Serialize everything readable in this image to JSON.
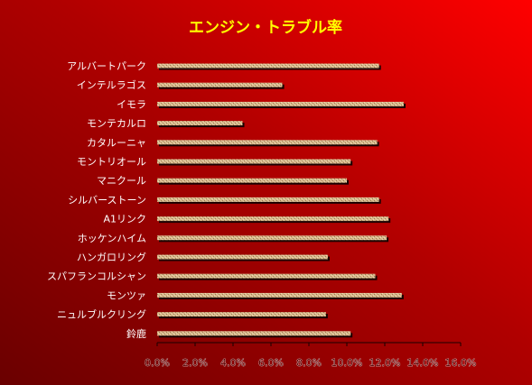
{
  "chart_data": {
    "type": "bar",
    "orientation": "horizontal",
    "title": "エンジン・トラブル率",
    "xlabel": "",
    "ylabel": "",
    "categories": [
      "アルバートパーク",
      "インテルラゴス",
      "イモラ",
      "モンテカルロ",
      "カタルーニャ",
      "モントリオール",
      "マニクール",
      "シルバーストーン",
      "A1リンク",
      "ホッケンハイム",
      "ハンガロリング",
      "スパフランコルシャン",
      "モンツァ",
      "ニュルブルクリング",
      "鈴鹿"
    ],
    "values": [
      11.7,
      6.6,
      13.0,
      4.5,
      11.6,
      10.2,
      10.0,
      11.7,
      12.2,
      12.1,
      9.0,
      11.5,
      12.9,
      8.9,
      10.2
    ],
    "xlim": [
      0,
      16
    ],
    "x_ticks": [
      "0.0%",
      "2.0%",
      "4.0%",
      "6.0%",
      "8.0%",
      "10.0%",
      "12.0%",
      "14.0%",
      "16.0%"
    ],
    "grid": false,
    "legend": "none",
    "colors": {
      "bar": "#d7b98d",
      "bar_shadow": "#1a0000",
      "background_start": "#6a0000",
      "background_end": "#ff0000",
      "title": "#ffff00",
      "text": "#ffffff"
    }
  }
}
